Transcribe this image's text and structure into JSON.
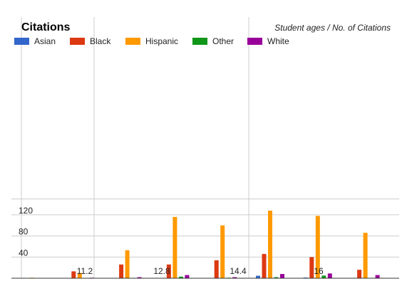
{
  "chart_data": {
    "type": "bar",
    "title": "Citations",
    "subtitle": "Student ages / No. of Citations",
    "legend_position": "top-left",
    "grid": true,
    "ylim": [
      0,
      150
    ],
    "y_ticks": [
      "40",
      "80",
      "120"
    ],
    "x_ticks": [
      "11.2",
      "12.8",
      "14.4",
      "16"
    ],
    "series": [
      {
        "name": "Asian",
        "color": "#3366cc",
        "values": [
          0,
          0,
          0.6,
          0,
          0,
          4.7,
          1.3,
          0.5
        ]
      },
      {
        "name": "Black",
        "color": "#dc3912",
        "values": [
          0,
          13,
          26,
          26,
          34,
          46,
          40,
          16
        ]
      },
      {
        "name": "Hispanic",
        "color": "#ff9900",
        "values": [
          1,
          10,
          53,
          116,
          100,
          128,
          118,
          86
        ]
      },
      {
        "name": "Other",
        "color": "#109618",
        "values": [
          0,
          0.5,
          0.7,
          3,
          1,
          2,
          5,
          0.7
        ]
      },
      {
        "name": "White",
        "color": "#990099",
        "values": [
          0,
          1,
          2,
          6,
          2,
          8,
          9,
          6
        ]
      }
    ]
  }
}
